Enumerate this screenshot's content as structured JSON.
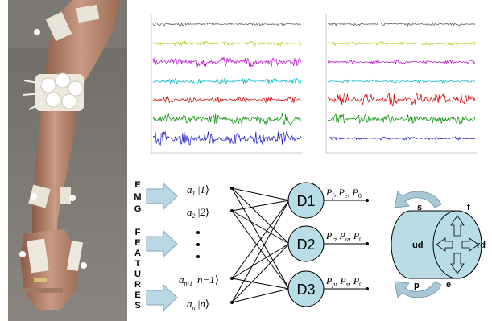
{
  "side_label_words": [
    "EMG",
    "FEATURES"
  ],
  "side_label_letters": [
    "E",
    "M",
    "G",
    "F",
    "E",
    "A",
    "T",
    "U",
    "R",
    "E",
    "S"
  ],
  "feature_items": [
    {
      "a": "a",
      "sub": "1",
      "ket": "1"
    },
    {
      "a": "a",
      "sub": "2",
      "ket": "2"
    },
    {
      "a": "a",
      "sub": "n-1",
      "ket": "n−1"
    },
    {
      "a": "a",
      "sub": "n",
      "ket": "n"
    }
  ],
  "decoders": [
    {
      "label": "D1",
      "outputs": [
        "P",
        "f",
        "P",
        "e",
        "P",
        "0"
      ]
    },
    {
      "label": "D2",
      "outputs": [
        "P",
        "r",
        "P",
        "u",
        "P",
        "0"
      ]
    },
    {
      "label": "D3",
      "outputs": [
        "P",
        "p",
        "P",
        "s",
        "P",
        "0"
      ]
    }
  ],
  "motion_labels": {
    "s": "s",
    "f": "f",
    "ud": "ud",
    "rd": "rd",
    "p": "p",
    "e": "e"
  },
  "colors": {
    "arrow_fill": "#b8d8e4",
    "node_fill": "#b8dde6",
    "cylinder_fill": "#b9dde6",
    "trace_colors": [
      "#555555",
      "#b5c400",
      "#b400c8",
      "#00b8c8",
      "#d40000",
      "#008c00",
      "#1515c8"
    ]
  }
}
